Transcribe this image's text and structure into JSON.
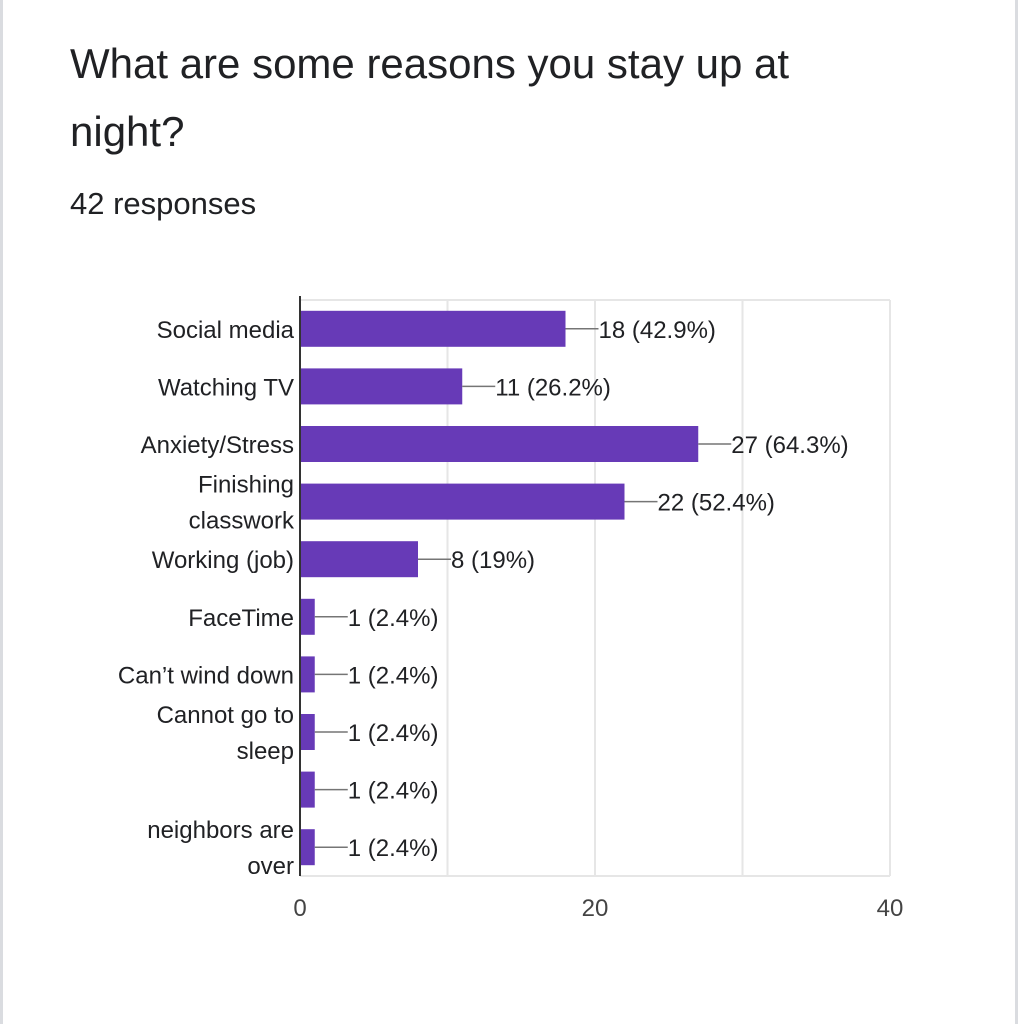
{
  "question": {
    "title": "What are some reasons you stay up at night?",
    "responses": "42 responses"
  },
  "chart_data": {
    "type": "bar",
    "orientation": "horizontal",
    "categories": [
      "Social media",
      "Watching TV",
      "Anxiety/Stress",
      "Finishing classwork",
      "Working (job)",
      "FaceTime",
      "Can’t wind down",
      "Cannot go to sleep",
      "",
      "neighbors are over"
    ],
    "values": [
      18,
      11,
      27,
      22,
      8,
      1,
      1,
      1,
      1,
      1
    ],
    "value_labels": [
      "18 (42.9%)",
      "11 (26.2%)",
      "27 (64.3%)",
      "22 (52.4%)",
      "8 (19%)",
      "1 (2.4%)",
      "1 (2.4%)",
      "1 (2.4%)",
      "1 (2.4%)",
      "1 (2.4%)"
    ],
    "xlim": [
      0,
      40
    ],
    "xticks": [
      0,
      20,
      40
    ],
    "grid": true,
    "legend": "none",
    "bar_color": "#673ab7"
  }
}
